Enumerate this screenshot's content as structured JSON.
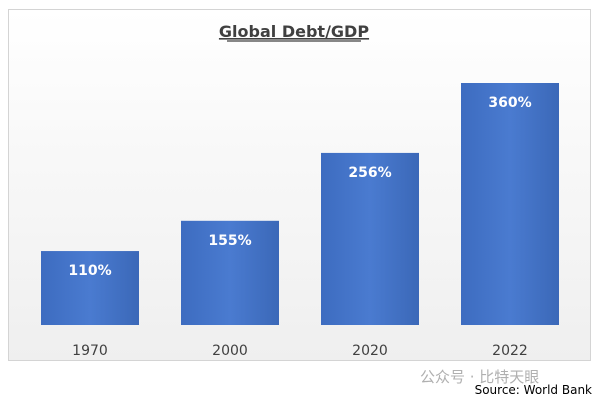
{
  "chart_data": {
    "type": "bar",
    "title": "Global Debt/GDP",
    "categories": [
      "1970",
      "2000",
      "2020",
      "2022"
    ],
    "values": [
      110,
      155,
      256,
      360
    ],
    "labels": [
      "110%",
      "155%",
      "256%",
      "360%"
    ],
    "unit": "%",
    "ylim": [
      0,
      360
    ],
    "grid": false,
    "bar_color": "#4472c4"
  },
  "source": "Source: World Bank",
  "watermark": "公众号 · 比特天眼"
}
